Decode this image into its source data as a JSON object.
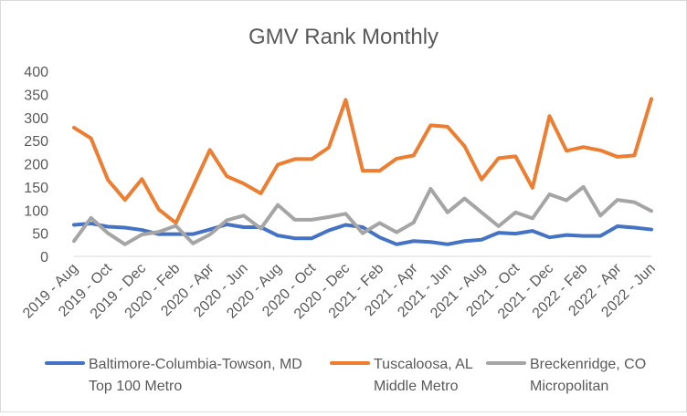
{
  "chart_data": {
    "type": "line",
    "title": "GMV Rank Monthly",
    "xlabel": "",
    "ylabel": "",
    "ylim": [
      0,
      400
    ],
    "yticks": [
      0,
      50,
      100,
      150,
      200,
      250,
      300,
      350,
      400
    ],
    "grid": false,
    "legend_position": "bottom",
    "x": [
      "2019 - Aug",
      "2019 - Sep",
      "2019 - Oct",
      "2019 - Nov",
      "2019 - Dec",
      "2020 - Jan",
      "2020 - Feb",
      "2020 - Mar",
      "2020 - Apr",
      "2020 - May",
      "2020 - Jun",
      "2020 - Jul",
      "2020 - Aug",
      "2020 - Sep",
      "2020 - Oct",
      "2020 - Nov",
      "2020 - Dec",
      "2021 - Jan",
      "2021 - Feb",
      "2021 - Mar",
      "2021 - Apr",
      "2021 - May",
      "2021 - Jun",
      "2021 - Jul",
      "2021 - Aug",
      "2021 - Sep",
      "2021 - Oct",
      "2021 - Nov",
      "2021 - Dec",
      "2022 - Jan",
      "2022 - Feb",
      "2022 - Mar",
      "2022 - Apr",
      "2022 - May",
      "2022 - Jun"
    ],
    "x_tick_labels": [
      "2019 - Aug",
      "2019 - Oct",
      "2019 - Dec",
      "2020 - Feb",
      "2020 - Apr",
      "2020 - Jun",
      "2020 - Aug",
      "2020 - Oct",
      "2020 - Dec",
      "2021 - Feb",
      "2021 - Apr",
      "2021 - Jun",
      "2021 - Aug",
      "2021 - Oct",
      "2021 - Dec",
      "2022 - Feb",
      "2022 - Apr",
      "2022 - Jun"
    ],
    "series": [
      {
        "name": "Baltimore-Columbia-Towson, MD Top 100 Metro",
        "legend_line1": "Baltimore-Columbia-Towson, MD",
        "legend_line2": "Top 100 Metro",
        "color": "#4472c4",
        "values": [
          68,
          71,
          64,
          62,
          57,
          48,
          48,
          48,
          58,
          69,
          63,
          63,
          45,
          39,
          39,
          56,
          68,
          63,
          41,
          26,
          33,
          31,
          26,
          33,
          36,
          51,
          49,
          55,
          41,
          46,
          44,
          44,
          65,
          62,
          58
        ]
      },
      {
        "name": "Tuscaloosa, AL Middle Metro",
        "legend_line1": "Tuscaloosa, AL",
        "legend_line2": "Middle Metro",
        "color": "#ed7d31",
        "values": [
          278,
          255,
          165,
          122,
          167,
          101,
          72,
          150,
          230,
          173,
          157,
          136,
          198,
          210,
          210,
          235,
          338,
          185,
          185,
          211,
          218,
          283,
          280,
          238,
          166,
          212,
          216,
          148,
          303,
          228,
          236,
          229,
          215,
          218,
          340
        ]
      },
      {
        "name": "Breckenridge, CO Micropolitan",
        "legend_line1": "Breckenridge, CO",
        "legend_line2": "Micropolitan",
        "color": "#a5a5a5",
        "values": [
          33,
          83,
          50,
          26,
          47,
          53,
          66,
          28,
          47,
          78,
          88,
          60,
          111,
          79,
          79,
          85,
          92,
          50,
          72,
          52,
          73,
          146,
          95,
          125,
          95,
          65,
          95,
          82,
          134,
          121,
          150,
          88,
          122,
          117,
          98
        ]
      }
    ]
  }
}
